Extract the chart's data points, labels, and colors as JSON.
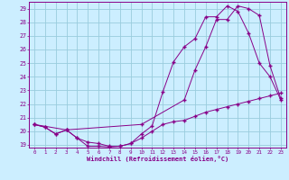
{
  "xlabel": "Windchill (Refroidissement éolien,°C)",
  "bg_color": "#cceeff",
  "grid_color": "#99ccdd",
  "line_color": "#880088",
  "xlim": [
    -0.5,
    23.5
  ],
  "ylim": [
    18.8,
    29.5
  ],
  "xticks": [
    0,
    1,
    2,
    3,
    4,
    5,
    6,
    7,
    8,
    9,
    10,
    11,
    12,
    13,
    14,
    15,
    16,
    17,
    18,
    19,
    20,
    21,
    22,
    23
  ],
  "yticks": [
    19,
    20,
    21,
    22,
    23,
    24,
    25,
    26,
    27,
    28,
    29
  ],
  "series1_x": [
    0,
    1,
    2,
    3,
    4,
    5,
    6,
    7,
    8,
    9,
    10,
    11,
    12,
    13,
    14,
    15,
    16,
    17,
    18,
    19,
    20,
    21,
    22,
    23
  ],
  "series1_y": [
    20.5,
    20.3,
    19.8,
    20.1,
    19.5,
    18.9,
    18.9,
    18.85,
    18.9,
    19.1,
    19.5,
    20.0,
    20.5,
    20.7,
    20.8,
    21.1,
    21.4,
    21.6,
    21.8,
    22.0,
    22.2,
    22.4,
    22.6,
    22.8
  ],
  "series2_x": [
    0,
    1,
    2,
    3,
    4,
    5,
    6,
    7,
    8,
    9,
    10,
    11,
    12,
    13,
    14,
    15,
    16,
    17,
    18,
    19,
    20,
    21,
    22,
    23
  ],
  "series2_y": [
    20.5,
    20.3,
    19.8,
    20.1,
    19.5,
    19.2,
    19.1,
    18.9,
    18.9,
    19.1,
    19.8,
    20.4,
    22.9,
    25.1,
    26.2,
    26.8,
    28.4,
    28.4,
    29.2,
    28.8,
    27.2,
    25.0,
    24.0,
    22.3
  ],
  "series3_x": [
    0,
    3,
    10,
    14,
    15,
    16,
    17,
    18,
    19,
    20,
    21,
    22,
    23
  ],
  "series3_y": [
    20.5,
    20.1,
    20.5,
    22.3,
    24.5,
    26.2,
    28.2,
    28.2,
    29.2,
    29.0,
    28.5,
    24.8,
    22.4
  ]
}
